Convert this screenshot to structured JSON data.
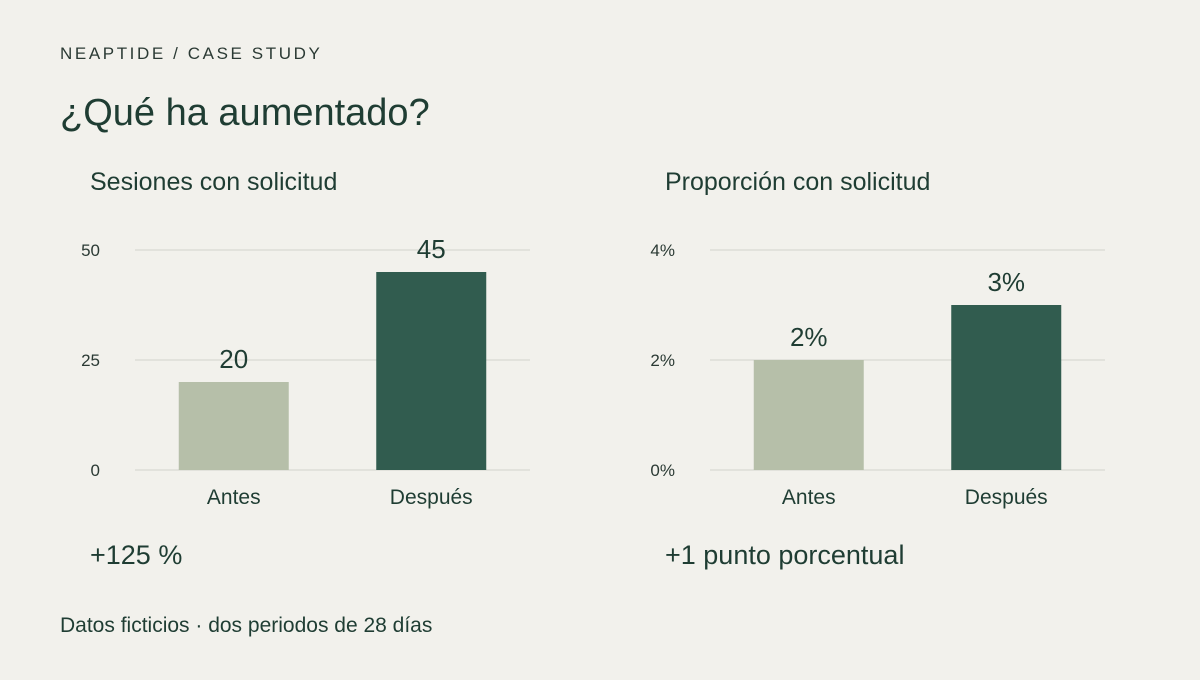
{
  "header": {
    "eyebrow": "NEAPTIDE / CASE STUDY",
    "title": "¿Qué ha aumentado?"
  },
  "footnote": "Datos ficticios · dos periodos de 28 días",
  "colors": {
    "before": "#b6bfa9",
    "after": "#315c4f",
    "text": "#1f3d33",
    "background": "#f2f1ec",
    "grid": "#d8d9d2"
  },
  "chart_data": [
    {
      "type": "bar",
      "title": "Sesiones con solicitud",
      "categories": [
        "Antes",
        "Después"
      ],
      "values": [
        20,
        45
      ],
      "value_labels": [
        "20",
        "45"
      ],
      "yticks": [
        0,
        25,
        50
      ],
      "ytick_labels": [
        "0",
        "25",
        "50"
      ],
      "ylim": [
        0,
        50
      ],
      "grid": true,
      "summary": "+125 %"
    },
    {
      "type": "bar",
      "title": "Proporción con solicitud",
      "categories": [
        "Antes",
        "Después"
      ],
      "values": [
        2,
        3
      ],
      "value_labels": [
        "2%",
        "3%"
      ],
      "yticks": [
        0,
        2,
        4
      ],
      "ytick_labels": [
        "0%",
        "2%",
        "4%"
      ],
      "ylim": [
        0,
        4
      ],
      "grid": true,
      "summary": "+1 punto porcentual"
    }
  ]
}
